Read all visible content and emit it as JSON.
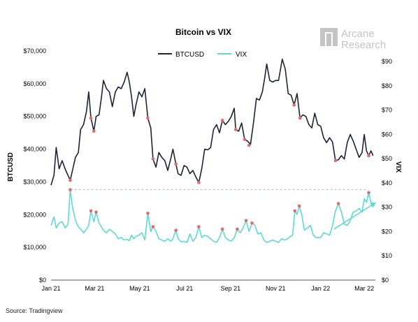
{
  "chart_data": {
    "type": "line",
    "title": "Bitcoin vs VIX",
    "ylabel_left": "BTCUSD",
    "ylabel_right": "VIX",
    "ylim_left": [
      0,
      70000
    ],
    "ylim_right": [
      0,
      90
    ],
    "left_ticks": [
      "$0",
      "$10,000",
      "$20,000",
      "$30,000",
      "$40,000",
      "$50,000",
      "$60,000",
      "$70,000"
    ],
    "left_tick_values": [
      0,
      10000,
      20000,
      30000,
      40000,
      50000,
      60000,
      70000
    ],
    "right_ticks": [
      "$0",
      "$10",
      "$20",
      "$30",
      "$40",
      "$50",
      "$60",
      "$70",
      "$80",
      "$90"
    ],
    "right_tick_values": [
      0,
      10,
      20,
      30,
      40,
      50,
      60,
      70,
      80,
      90
    ],
    "x_ticks": [
      "Jan 21",
      "Mar 21",
      "May 21",
      "Jul 21",
      "Sep 21",
      "Nov 21",
      "Jan 22",
      "Mar 22"
    ],
    "x_tick_dates": [
      "2021-01-01",
      "2021-03-01",
      "2021-05-01",
      "2021-07-01",
      "2021-09-01",
      "2021-11-01",
      "2022-01-01",
      "2022-03-01"
    ],
    "legend_position": "top-center",
    "series": [
      {
        "name": "BTCUSD",
        "color": "#1c2333",
        "axis": "left",
        "points": [
          [
            "2021-01-01",
            29000
          ],
          [
            "2021-01-05",
            32000
          ],
          [
            "2021-01-08",
            40500
          ],
          [
            "2021-01-12",
            34000
          ],
          [
            "2021-01-16",
            36500
          ],
          [
            "2021-01-20",
            34000
          ],
          [
            "2021-01-24",
            32000
          ],
          [
            "2021-01-27",
            30500
          ],
          [
            "2021-01-30",
            33500
          ],
          [
            "2021-02-03",
            37500
          ],
          [
            "2021-02-07",
            39000
          ],
          [
            "2021-02-10",
            46000
          ],
          [
            "2021-02-14",
            47500
          ],
          [
            "2021-02-18",
            51500
          ],
          [
            "2021-02-21",
            57500
          ],
          [
            "2021-02-24",
            49500
          ],
          [
            "2021-02-28",
            45500
          ],
          [
            "2021-03-03",
            50000
          ],
          [
            "2021-03-07",
            50500
          ],
          [
            "2021-03-10",
            55500
          ],
          [
            "2021-03-13",
            61000
          ],
          [
            "2021-03-17",
            58500
          ],
          [
            "2021-03-21",
            57500
          ],
          [
            "2021-03-25",
            53000
          ],
          [
            "2021-03-29",
            57500
          ],
          [
            "2021-04-02",
            59000
          ],
          [
            "2021-04-06",
            58500
          ],
          [
            "2021-04-10",
            60500
          ],
          [
            "2021-04-14",
            63500
          ],
          [
            "2021-04-17",
            60500
          ],
          [
            "2021-04-20",
            56000
          ],
          [
            "2021-04-23",
            50000
          ],
          [
            "2021-04-26",
            53500
          ],
          [
            "2021-04-30",
            57500
          ],
          [
            "2021-05-04",
            56000
          ],
          [
            "2021-05-08",
            58500
          ],
          [
            "2021-05-12",
            49500
          ],
          [
            "2021-05-16",
            46500
          ],
          [
            "2021-05-19",
            37000
          ],
          [
            "2021-05-23",
            34500
          ],
          [
            "2021-05-27",
            39000
          ],
          [
            "2021-05-31",
            37500
          ],
          [
            "2021-06-04",
            36500
          ],
          [
            "2021-06-08",
            33500
          ],
          [
            "2021-06-12",
            37000
          ],
          [
            "2021-06-15",
            40000
          ],
          [
            "2021-06-19",
            35500
          ],
          [
            "2021-06-22",
            32500
          ],
          [
            "2021-06-26",
            32000
          ],
          [
            "2021-06-30",
            35000
          ],
          [
            "2021-07-04",
            34500
          ],
          [
            "2021-07-08",
            32500
          ],
          [
            "2021-07-12",
            33500
          ],
          [
            "2021-07-16",
            31500
          ],
          [
            "2021-07-20",
            29800
          ],
          [
            "2021-07-24",
            34000
          ],
          [
            "2021-07-28",
            40000
          ],
          [
            "2021-08-01",
            39800
          ],
          [
            "2021-08-05",
            40500
          ],
          [
            "2021-08-09",
            46000
          ],
          [
            "2021-08-13",
            47500
          ],
          [
            "2021-08-17",
            45000
          ],
          [
            "2021-08-21",
            48800
          ],
          [
            "2021-08-25",
            47500
          ],
          [
            "2021-08-29",
            48500
          ],
          [
            "2021-09-02",
            50000
          ],
          [
            "2021-09-06",
            52500
          ],
          [
            "2021-09-08",
            46000
          ],
          [
            "2021-09-12",
            45500
          ],
          [
            "2021-09-16",
            48000
          ],
          [
            "2021-09-20",
            43000
          ],
          [
            "2021-09-24",
            42500
          ],
          [
            "2021-09-28",
            41500
          ],
          [
            "2021-10-02",
            48000
          ],
          [
            "2021-10-06",
            55500
          ],
          [
            "2021-10-10",
            55000
          ],
          [
            "2021-10-14",
            57500
          ],
          [
            "2021-10-17",
            61500
          ],
          [
            "2021-10-20",
            66000
          ],
          [
            "2021-10-24",
            61000
          ],
          [
            "2021-10-28",
            60500
          ],
          [
            "2021-11-01",
            61000
          ],
          [
            "2021-11-05",
            61000
          ],
          [
            "2021-11-10",
            67500
          ],
          [
            "2021-11-14",
            64500
          ],
          [
            "2021-11-18",
            57000
          ],
          [
            "2021-11-22",
            56500
          ],
          [
            "2021-11-26",
            53500
          ],
          [
            "2021-11-30",
            57000
          ],
          [
            "2021-12-04",
            49500
          ],
          [
            "2021-12-08",
            50500
          ],
          [
            "2021-12-12",
            50000
          ],
          [
            "2021-12-16",
            47500
          ],
          [
            "2021-12-20",
            46500
          ],
          [
            "2021-12-24",
            51000
          ],
          [
            "2021-12-28",
            47500
          ],
          [
            "2022-01-01",
            47000
          ],
          [
            "2022-01-05",
            43500
          ],
          [
            "2022-01-09",
            42000
          ],
          [
            "2022-01-13",
            43500
          ],
          [
            "2022-01-17",
            42200
          ],
          [
            "2022-01-21",
            36500
          ],
          [
            "2022-01-25",
            36800
          ],
          [
            "2022-01-29",
            38000
          ],
          [
            "2022-02-02",
            37000
          ],
          [
            "2022-02-06",
            42000
          ],
          [
            "2022-02-10",
            44500
          ],
          [
            "2022-02-14",
            42500
          ],
          [
            "2022-02-18",
            40000
          ],
          [
            "2022-02-22",
            37500
          ],
          [
            "2022-02-26",
            39000
          ],
          [
            "2022-03-01",
            44500
          ],
          [
            "2022-03-04",
            39500
          ],
          [
            "2022-03-07",
            38000
          ],
          [
            "2022-03-10",
            39500
          ],
          [
            "2022-03-13",
            38000
          ]
        ]
      },
      {
        "name": "VIX",
        "color": "#5ddad6",
        "axis": "right",
        "points": [
          [
            "2021-01-01",
            22.5
          ],
          [
            "2021-01-05",
            26.0
          ],
          [
            "2021-01-08",
            21.5
          ],
          [
            "2021-01-12",
            23.5
          ],
          [
            "2021-01-16",
            24.0
          ],
          [
            "2021-01-20",
            21.5
          ],
          [
            "2021-01-24",
            23.0
          ],
          [
            "2021-01-27",
            37.2
          ],
          [
            "2021-01-30",
            30.0
          ],
          [
            "2021-02-03",
            24.5
          ],
          [
            "2021-02-07",
            22.0
          ],
          [
            "2021-02-10",
            21.0
          ],
          [
            "2021-02-14",
            19.5
          ],
          [
            "2021-02-18",
            21.0
          ],
          [
            "2021-02-21",
            22.5
          ],
          [
            "2021-02-24",
            28.5
          ],
          [
            "2021-02-28",
            24.0
          ],
          [
            "2021-03-03",
            28.0
          ],
          [
            "2021-03-07",
            23.5
          ],
          [
            "2021-03-10",
            22.0
          ],
          [
            "2021-03-13",
            20.5
          ],
          [
            "2021-03-17",
            19.5
          ],
          [
            "2021-03-21",
            21.0
          ],
          [
            "2021-03-25",
            20.0
          ],
          [
            "2021-03-29",
            19.0
          ],
          [
            "2021-04-02",
            17.0
          ],
          [
            "2021-04-06",
            17.5
          ],
          [
            "2021-04-10",
            16.5
          ],
          [
            "2021-04-14",
            16.8
          ],
          [
            "2021-04-17",
            16.2
          ],
          [
            "2021-04-20",
            18.5
          ],
          [
            "2021-04-23",
            17.0
          ],
          [
            "2021-04-26",
            18.0
          ],
          [
            "2021-04-30",
            18.5
          ],
          [
            "2021-05-04",
            19.5
          ],
          [
            "2021-05-08",
            16.5
          ],
          [
            "2021-05-12",
            27.5
          ],
          [
            "2021-05-16",
            20.0
          ],
          [
            "2021-05-19",
            22.0
          ],
          [
            "2021-05-23",
            20.0
          ],
          [
            "2021-05-27",
            17.0
          ],
          [
            "2021-05-31",
            16.5
          ],
          [
            "2021-06-04",
            16.0
          ],
          [
            "2021-06-08",
            17.0
          ],
          [
            "2021-06-12",
            16.0
          ],
          [
            "2021-06-15",
            17.0
          ],
          [
            "2021-06-19",
            20.5
          ],
          [
            "2021-06-22",
            17.0
          ],
          [
            "2021-06-26",
            15.8
          ],
          [
            "2021-06-30",
            16.0
          ],
          [
            "2021-07-04",
            15.5
          ],
          [
            "2021-07-08",
            19.0
          ],
          [
            "2021-07-12",
            16.0
          ],
          [
            "2021-07-16",
            17.5
          ],
          [
            "2021-07-20",
            22.0
          ],
          [
            "2021-07-24",
            17.5
          ],
          [
            "2021-07-28",
            18.5
          ],
          [
            "2021-08-01",
            18.0
          ],
          [
            "2021-08-05",
            17.0
          ],
          [
            "2021-08-09",
            16.0
          ],
          [
            "2021-08-13",
            15.5
          ],
          [
            "2021-08-17",
            17.5
          ],
          [
            "2021-08-21",
            21.0
          ],
          [
            "2021-08-25",
            17.5
          ],
          [
            "2021-08-29",
            16.5
          ],
          [
            "2021-09-02",
            16.0
          ],
          [
            "2021-09-06",
            17.5
          ],
          [
            "2021-09-10",
            21.0
          ],
          [
            "2021-09-14",
            19.5
          ],
          [
            "2021-09-18",
            21.5
          ],
          [
            "2021-09-22",
            24.5
          ],
          [
            "2021-09-26",
            20.0
          ],
          [
            "2021-09-30",
            23.5
          ],
          [
            "2021-10-04",
            22.5
          ],
          [
            "2021-10-08",
            19.0
          ],
          [
            "2021-10-12",
            19.5
          ],
          [
            "2021-10-16",
            16.5
          ],
          [
            "2021-10-20",
            15.5
          ],
          [
            "2021-10-24",
            16.0
          ],
          [
            "2021-10-28",
            16.5
          ],
          [
            "2021-11-01",
            16.0
          ],
          [
            "2021-11-05",
            15.5
          ],
          [
            "2021-11-09",
            17.0
          ],
          [
            "2021-11-13",
            16.5
          ],
          [
            "2021-11-17",
            17.0
          ],
          [
            "2021-11-21",
            18.0
          ],
          [
            "2021-11-24",
            18.5
          ],
          [
            "2021-11-27",
            28.5
          ],
          [
            "2021-11-30",
            27.0
          ],
          [
            "2021-12-03",
            30.5
          ],
          [
            "2021-12-06",
            27.5
          ],
          [
            "2021-12-10",
            20.5
          ],
          [
            "2021-12-14",
            21.5
          ],
          [
            "2021-12-18",
            22.5
          ],
          [
            "2021-12-22",
            18.5
          ],
          [
            "2021-12-26",
            17.5
          ],
          [
            "2022-01-01",
            17.5
          ],
          [
            "2022-01-05",
            19.5
          ],
          [
            "2022-01-09",
            19.0
          ],
          [
            "2022-01-13",
            18.5
          ],
          [
            "2022-01-17",
            22.5
          ],
          [
            "2022-01-21",
            28.5
          ],
          [
            "2022-01-25",
            31.5
          ],
          [
            "2022-01-29",
            28.0
          ],
          [
            "2022-02-02",
            23.0
          ],
          [
            "2022-02-06",
            22.5
          ],
          [
            "2022-02-10",
            24.5
          ],
          [
            "2022-02-14",
            28.0
          ],
          [
            "2022-02-18",
            28.5
          ],
          [
            "2022-02-22",
            29.5
          ],
          [
            "2022-02-26",
            28.0
          ],
          [
            "2022-03-01",
            33.5
          ],
          [
            "2022-03-04",
            32.0
          ],
          [
            "2022-03-07",
            36.0
          ],
          [
            "2022-03-10",
            32.0
          ],
          [
            "2022-03-13",
            31.5
          ]
        ]
      }
    ],
    "btc_markers": [
      [
        "2021-01-27",
        30500
      ],
      [
        "2021-02-24",
        49500
      ],
      [
        "2021-02-28",
        45500
      ],
      [
        "2021-05-12",
        49500
      ],
      [
        "2021-05-19",
        37000
      ],
      [
        "2021-06-19",
        35500
      ],
      [
        "2021-07-20",
        29800
      ],
      [
        "2021-08-21",
        48800
      ],
      [
        "2021-09-08",
        46000
      ],
      [
        "2021-09-20",
        43000
      ],
      [
        "2021-09-26",
        41200
      ],
      [
        "2021-11-26",
        53500
      ],
      [
        "2021-12-04",
        49500
      ],
      [
        "2022-01-21",
        36500
      ],
      [
        "2022-03-07",
        38000
      ]
    ],
    "vix_markers": [
      [
        "2021-01-27",
        37.2
      ],
      [
        "2021-02-24",
        28.5
      ],
      [
        "2021-03-03",
        28.0
      ],
      [
        "2021-05-12",
        27.5
      ],
      [
        "2021-05-19",
        22.0
      ],
      [
        "2021-06-19",
        20.5
      ],
      [
        "2021-07-20",
        22.0
      ],
      [
        "2021-08-21",
        21.0
      ],
      [
        "2021-09-10",
        21.0
      ],
      [
        "2021-09-22",
        24.5
      ],
      [
        "2021-09-30",
        23.5
      ],
      [
        "2021-11-27",
        28.5
      ],
      [
        "2021-12-03",
        30.5
      ],
      [
        "2022-01-25",
        31.5
      ],
      [
        "2022-03-07",
        36.0
      ]
    ],
    "reference_line_vix": 37.2,
    "trend_arrow": {
      "from": [
        "2022-01-19",
        21.0
      ],
      "to": [
        "2022-03-17",
        32.0
      ],
      "color": "#5ddad6"
    },
    "marker_color": "#e36a6a"
  },
  "watermark": {
    "line1": "Arcane",
    "line2": "Research"
  },
  "source": "Source: Tradingview"
}
